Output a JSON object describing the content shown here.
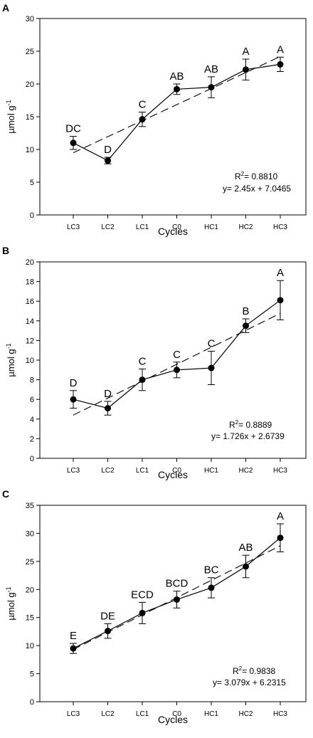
{
  "chart_data": [
    {
      "panel_label": "A",
      "type": "line",
      "categories": [
        "LC3",
        "LC2",
        "LC1",
        "C0",
        "HC1",
        "HC2",
        "HC3"
      ],
      "series": [
        {
          "values": [
            11.0,
            8.3,
            14.6,
            19.2,
            19.5,
            22.2,
            23.0
          ],
          "errors": [
            1.0,
            0.5,
            1.1,
            0.8,
            1.6,
            1.6,
            1.1
          ],
          "letters": [
            "DC",
            "D",
            "C",
            "AB",
            "AB",
            "A",
            "A"
          ]
        }
      ],
      "trend": {
        "slope": 2.45,
        "intercept": 7.0465
      },
      "r2_prefix": "R",
      "r2_sup": "2",
      "r2_value": "= 0.8810",
      "equation": "y= 2.45x + 7.0465",
      "ylabel_main": "µmol g",
      "ylabel_sup": "-1",
      "xlabel": "Cycles",
      "ylim": [
        0,
        30
      ],
      "yticks": [
        "0",
        "5",
        "10",
        "15",
        "20",
        "25",
        "30"
      ]
    },
    {
      "panel_label": "B",
      "type": "line",
      "categories": [
        "LC3",
        "LC2",
        "LC1",
        "C0",
        "HC1",
        "HC2",
        "HC3"
      ],
      "series": [
        {
          "values": [
            6.0,
            5.1,
            8.0,
            9.0,
            9.2,
            13.5,
            16.1
          ],
          "errors": [
            0.9,
            0.7,
            1.1,
            0.8,
            1.7,
            0.7,
            2.0
          ],
          "letters": [
            "D",
            "D",
            "C",
            "C",
            "C",
            "B",
            "A"
          ]
        }
      ],
      "trend": {
        "slope": 1.726,
        "intercept": 2.6739
      },
      "r2_prefix": "R",
      "r2_sup": "2",
      "r2_value": "= 0.8889",
      "equation": "y= 1.726x + 2.6739",
      "ylabel_main": "µmol g",
      "ylabel_sup": "-1",
      "xlabel": "Cycles",
      "ylim": [
        0,
        20
      ],
      "yticks": [
        "0",
        "2",
        "4",
        "6",
        "8",
        "10",
        "12",
        "14",
        "16",
        "18",
        "20"
      ]
    },
    {
      "panel_label": "C",
      "type": "line",
      "categories": [
        "LC3",
        "LC2",
        "LC1",
        "C0",
        "HC1",
        "HC2",
        "HC3"
      ],
      "series": [
        {
          "values": [
            9.5,
            12.6,
            15.8,
            18.2,
            20.3,
            24.1,
            29.2
          ],
          "errors": [
            0.9,
            1.3,
            1.9,
            1.5,
            1.8,
            2.0,
            2.5
          ],
          "letters": [
            "E",
            "DE",
            "ECD",
            "BCD",
            "BC",
            "AB",
            "A"
          ]
        }
      ],
      "trend": {
        "slope": 3.079,
        "intercept": 6.2315
      },
      "r2_prefix": "R",
      "r2_sup": "2",
      "r2_value": "= 0.9838",
      "equation": "y= 3.079x + 6.2315",
      "ylabel_main": "µmol g",
      "ylabel_sup": "-1",
      "xlabel": "Cycles",
      "ylim": [
        0,
        35
      ],
      "yticks": [
        "0",
        "5",
        "10",
        "15",
        "20",
        "25",
        "30",
        "35"
      ]
    }
  ]
}
